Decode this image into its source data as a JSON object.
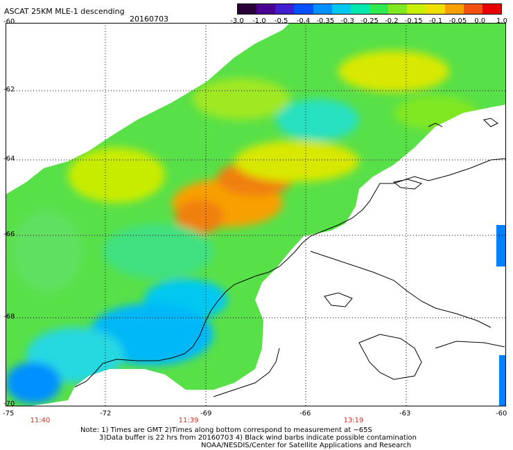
{
  "title": {
    "product": "ASCAT 25KM MLE-1 descending",
    "date": "20160703"
  },
  "colorbar": {
    "labels": [
      "-3.0",
      "-1.0",
      "-0.5",
      "-0.4",
      "-0.35",
      "-0.3",
      "-0.25",
      "-0.2",
      "-0.15",
      "-0.1",
      "-0.05",
      "0.0",
      "1.0"
    ],
    "colors": [
      "#2a0038",
      "#4a0090",
      "#3f1fd0",
      "#0050ff",
      "#0090ff",
      "#00c8f0",
      "#00e8b0",
      "#30e850",
      "#80e820",
      "#c8f000",
      "#f0e000",
      "#f8a000",
      "#f05010",
      "#e80000"
    ]
  },
  "map": {
    "latitudes": [
      "-60",
      "-62",
      "-64",
      "-66",
      "-68",
      "-70"
    ],
    "longitudes": [
      "-75",
      "-72",
      "-69",
      "-66",
      "-63",
      "-60"
    ],
    "pass_times": [
      "11:40",
      "11:39",
      "13:19"
    ],
    "land_color": "#ffffff",
    "coast_color": "#000000"
  },
  "notes": [
    "Note: 1) Times are GMT 2)Times along bottom correspond to measurement at ~65S",
    "3)Data buffer is 22 hrs from 20160703 4) Black wind barbs indicate possible contamination",
    "NOAA/NESDIS/Center for Satellite Applications and Research"
  ]
}
